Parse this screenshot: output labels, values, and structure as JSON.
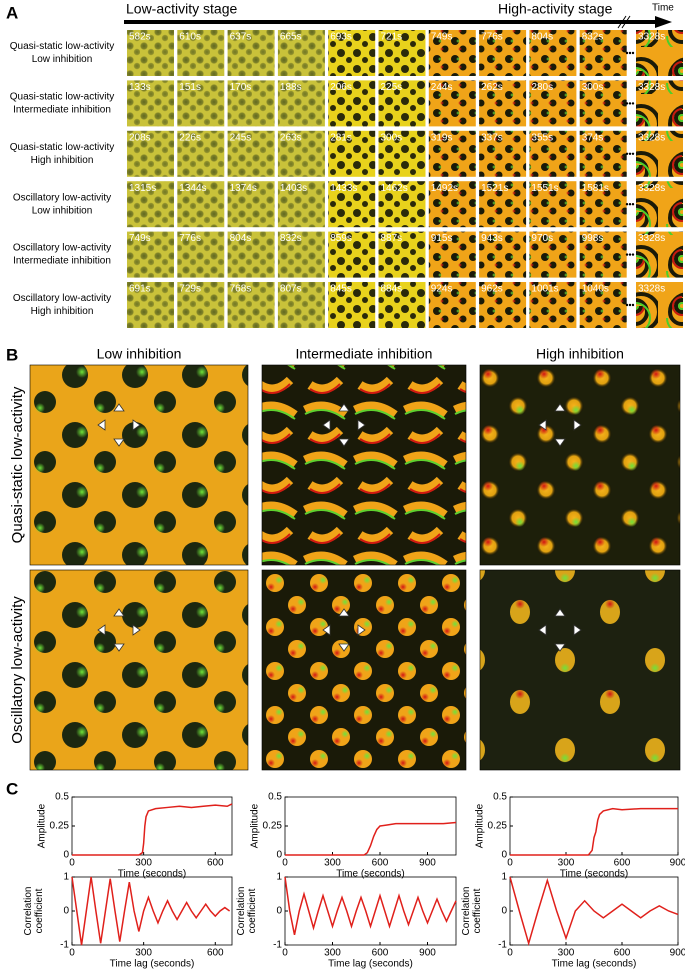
{
  "panel_a": {
    "label": "A",
    "stage_start": "Low-activity stage",
    "stage_end": "High-activity stage",
    "time_label": "Time",
    "rows": [
      {
        "label": [
          "Quasi-static low-activity",
          "Low inhibition"
        ],
        "times": [
          "582s",
          "610s",
          "637s",
          "665s",
          "693s",
          "721s",
          "749s",
          "776s",
          "804s",
          "832s",
          "3328s"
        ]
      },
      {
        "label": [
          "Quasi-static low-activity",
          "Intermediate inhibition"
        ],
        "times": [
          "133s",
          "151s",
          "170s",
          "188s",
          "206s",
          "225s",
          "244s",
          "262s",
          "280s",
          "300s",
          "3328s"
        ]
      },
      {
        "label": [
          "Quasi-static low-activity",
          "High inhibition"
        ],
        "times": [
          "208s",
          "226s",
          "245s",
          "263s",
          "281s",
          "300s",
          "319s",
          "337s",
          "355s",
          "374s",
          "3328s"
        ]
      },
      {
        "label": [
          "Oscillatory low-activity",
          "Low inhibition"
        ],
        "times": [
          "1315s",
          "1344s",
          "1374s",
          "1403s",
          "1433s",
          "1462s",
          "1492s",
          "1521s",
          "1551s",
          "1581s",
          "3328s"
        ]
      },
      {
        "label": [
          "Oscillatory low-activity",
          "Intermediate inhibition"
        ],
        "times": [
          "749s",
          "776s",
          "804s",
          "832s",
          "859s",
          "887s",
          "915s",
          "943s",
          "970s",
          "998s",
          "3328s"
        ]
      },
      {
        "label": [
          "Oscillatory low-activity",
          "High inhibition"
        ],
        "times": [
          "691s",
          "729s",
          "768s",
          "807s",
          "845s",
          "884s",
          "924s",
          "962s",
          "1001s",
          "1040s",
          "3328s"
        ]
      }
    ]
  },
  "panel_b": {
    "label": "B",
    "columns": [
      "Low inhibition",
      "Intermediate inhibition",
      "High inhibition"
    ],
    "rows": [
      "Quasi-static low-activity",
      "Oscillatory low-activity"
    ]
  },
  "panel_c": {
    "label": "C"
  },
  "chart_data": [
    {
      "type": "line",
      "xlabel": "Time (seconds)",
      "ylabel": [
        "Amplitude"
      ],
      "xlim": [
        0,
        670
      ],
      "xticks": [
        0,
        300,
        600
      ],
      "ylim": [
        0,
        0.5
      ],
      "yticks": [
        0,
        0.25,
        0.5
      ],
      "x": [
        0,
        280,
        295,
        300,
        305,
        310,
        320,
        350,
        400,
        450,
        500,
        550,
        600,
        650,
        670
      ],
      "series": [
        {
          "color": "#e0201b",
          "values": [
            0,
            0,
            0.02,
            0.1,
            0.25,
            0.33,
            0.38,
            0.4,
            0.41,
            0.42,
            0.41,
            0.42,
            0.43,
            0.42,
            0.44
          ]
        }
      ]
    },
    {
      "type": "line",
      "xlabel": "Time (seconds)",
      "ylabel": [
        "Amplitude"
      ],
      "xlim": [
        0,
        1080
      ],
      "xticks": [
        0,
        300,
        600,
        900
      ],
      "ylim": [
        0,
        0.5
      ],
      "yticks": [
        0,
        0.25,
        0.5
      ],
      "x": [
        0,
        500,
        520,
        540,
        560,
        580,
        600,
        650,
        700,
        800,
        900,
        1000,
        1080
      ],
      "series": [
        {
          "color": "#e0201b",
          "values": [
            0,
            0,
            0.02,
            0.08,
            0.16,
            0.22,
            0.25,
            0.26,
            0.27,
            0.27,
            0.27,
            0.27,
            0.28
          ]
        }
      ]
    },
    {
      "type": "line",
      "xlabel": "Time (seconds)",
      "ylabel": [
        "Amplitude"
      ],
      "xlim": [
        0,
        900
      ],
      "xticks": [
        0,
        300,
        600,
        900
      ],
      "ylim": [
        0,
        0.5
      ],
      "yticks": [
        0,
        0.25,
        0.5
      ],
      "x": [
        0,
        420,
        440,
        450,
        460,
        470,
        480,
        500,
        550,
        600,
        700,
        800,
        900
      ],
      "series": [
        {
          "color": "#e0201b",
          "values": [
            0,
            0,
            0.04,
            0.15,
            0.2,
            0.3,
            0.35,
            0.38,
            0.4,
            0.39,
            0.4,
            0.4,
            0.4
          ]
        }
      ]
    },
    {
      "type": "line",
      "xlabel": "Time lag (seconds)",
      "ylabel": [
        "Correlation",
        "coefficient"
      ],
      "xlim": [
        0,
        670
      ],
      "xticks": [
        0,
        300,
        600
      ],
      "ylim": [
        -1,
        1
      ],
      "yticks": [
        -1,
        0,
        1
      ],
      "x": [
        0,
        20,
        40,
        60,
        80,
        100,
        120,
        140,
        160,
        180,
        200,
        220,
        240,
        260,
        280,
        300,
        320,
        340,
        360,
        380,
        400,
        420,
        440,
        460,
        480,
        500,
        520,
        540,
        560,
        580,
        600,
        620,
        640,
        660
      ],
      "series": [
        {
          "color": "#e0201b",
          "values": [
            1,
            0,
            -1,
            0,
            1,
            0,
            -0.95,
            0,
            0.95,
            0,
            -0.9,
            0,
            0.85,
            0,
            -0.6,
            0,
            0.4,
            0,
            -0.35,
            0,
            0.3,
            0,
            -0.25,
            0,
            0.25,
            0,
            -0.2,
            0,
            0.2,
            0,
            -0.15,
            0,
            0.1,
            0
          ]
        }
      ]
    },
    {
      "type": "line",
      "xlabel": "Time lag (seconds)",
      "ylabel": [
        "Correlation",
        "coefficient"
      ],
      "xlim": [
        0,
        1080
      ],
      "xticks": [
        0,
        300,
        600,
        900
      ],
      "ylim": [
        -1,
        1
      ],
      "yticks": [
        -1,
        0,
        1
      ],
      "x": [
        0,
        30,
        60,
        90,
        120,
        150,
        180,
        210,
        240,
        270,
        300,
        330,
        360,
        390,
        420,
        450,
        480,
        510,
        540,
        570,
        600,
        630,
        660,
        690,
        720,
        750,
        780,
        810,
        840,
        870,
        900,
        930,
        960,
        990,
        1020,
        1050,
        1080
      ],
      "series": [
        {
          "color": "#e0201b",
          "values": [
            1,
            0,
            -0.7,
            0,
            0.5,
            0,
            -0.5,
            0,
            0.45,
            0,
            -0.45,
            0,
            0.4,
            0,
            -0.45,
            0,
            0.4,
            0,
            -0.45,
            0,
            0.45,
            0,
            -0.45,
            0,
            0.45,
            0,
            -0.4,
            0,
            0.4,
            0,
            -0.35,
            0,
            0.35,
            0,
            -0.3,
            0,
            0.3
          ]
        }
      ]
    },
    {
      "type": "line",
      "xlabel": "Time lag (seconds)",
      "ylabel": [
        "Correlation",
        "coefficient"
      ],
      "xlim": [
        0,
        900
      ],
      "xticks": [
        0,
        300,
        600,
        900
      ],
      "ylim": [
        -1,
        1
      ],
      "yticks": [
        -1,
        0,
        1
      ],
      "x": [
        0,
        50,
        100,
        150,
        200,
        250,
        300,
        350,
        400,
        450,
        500,
        550,
        600,
        650,
        700,
        750,
        800,
        850,
        900
      ],
      "series": [
        {
          "color": "#e0201b",
          "values": [
            1,
            0,
            -0.95,
            0,
            0.9,
            0,
            -0.8,
            0,
            0.3,
            0,
            -0.2,
            0,
            0.2,
            0,
            -0.2,
            0,
            0.15,
            0,
            -0.1
          ]
        }
      ]
    }
  ]
}
